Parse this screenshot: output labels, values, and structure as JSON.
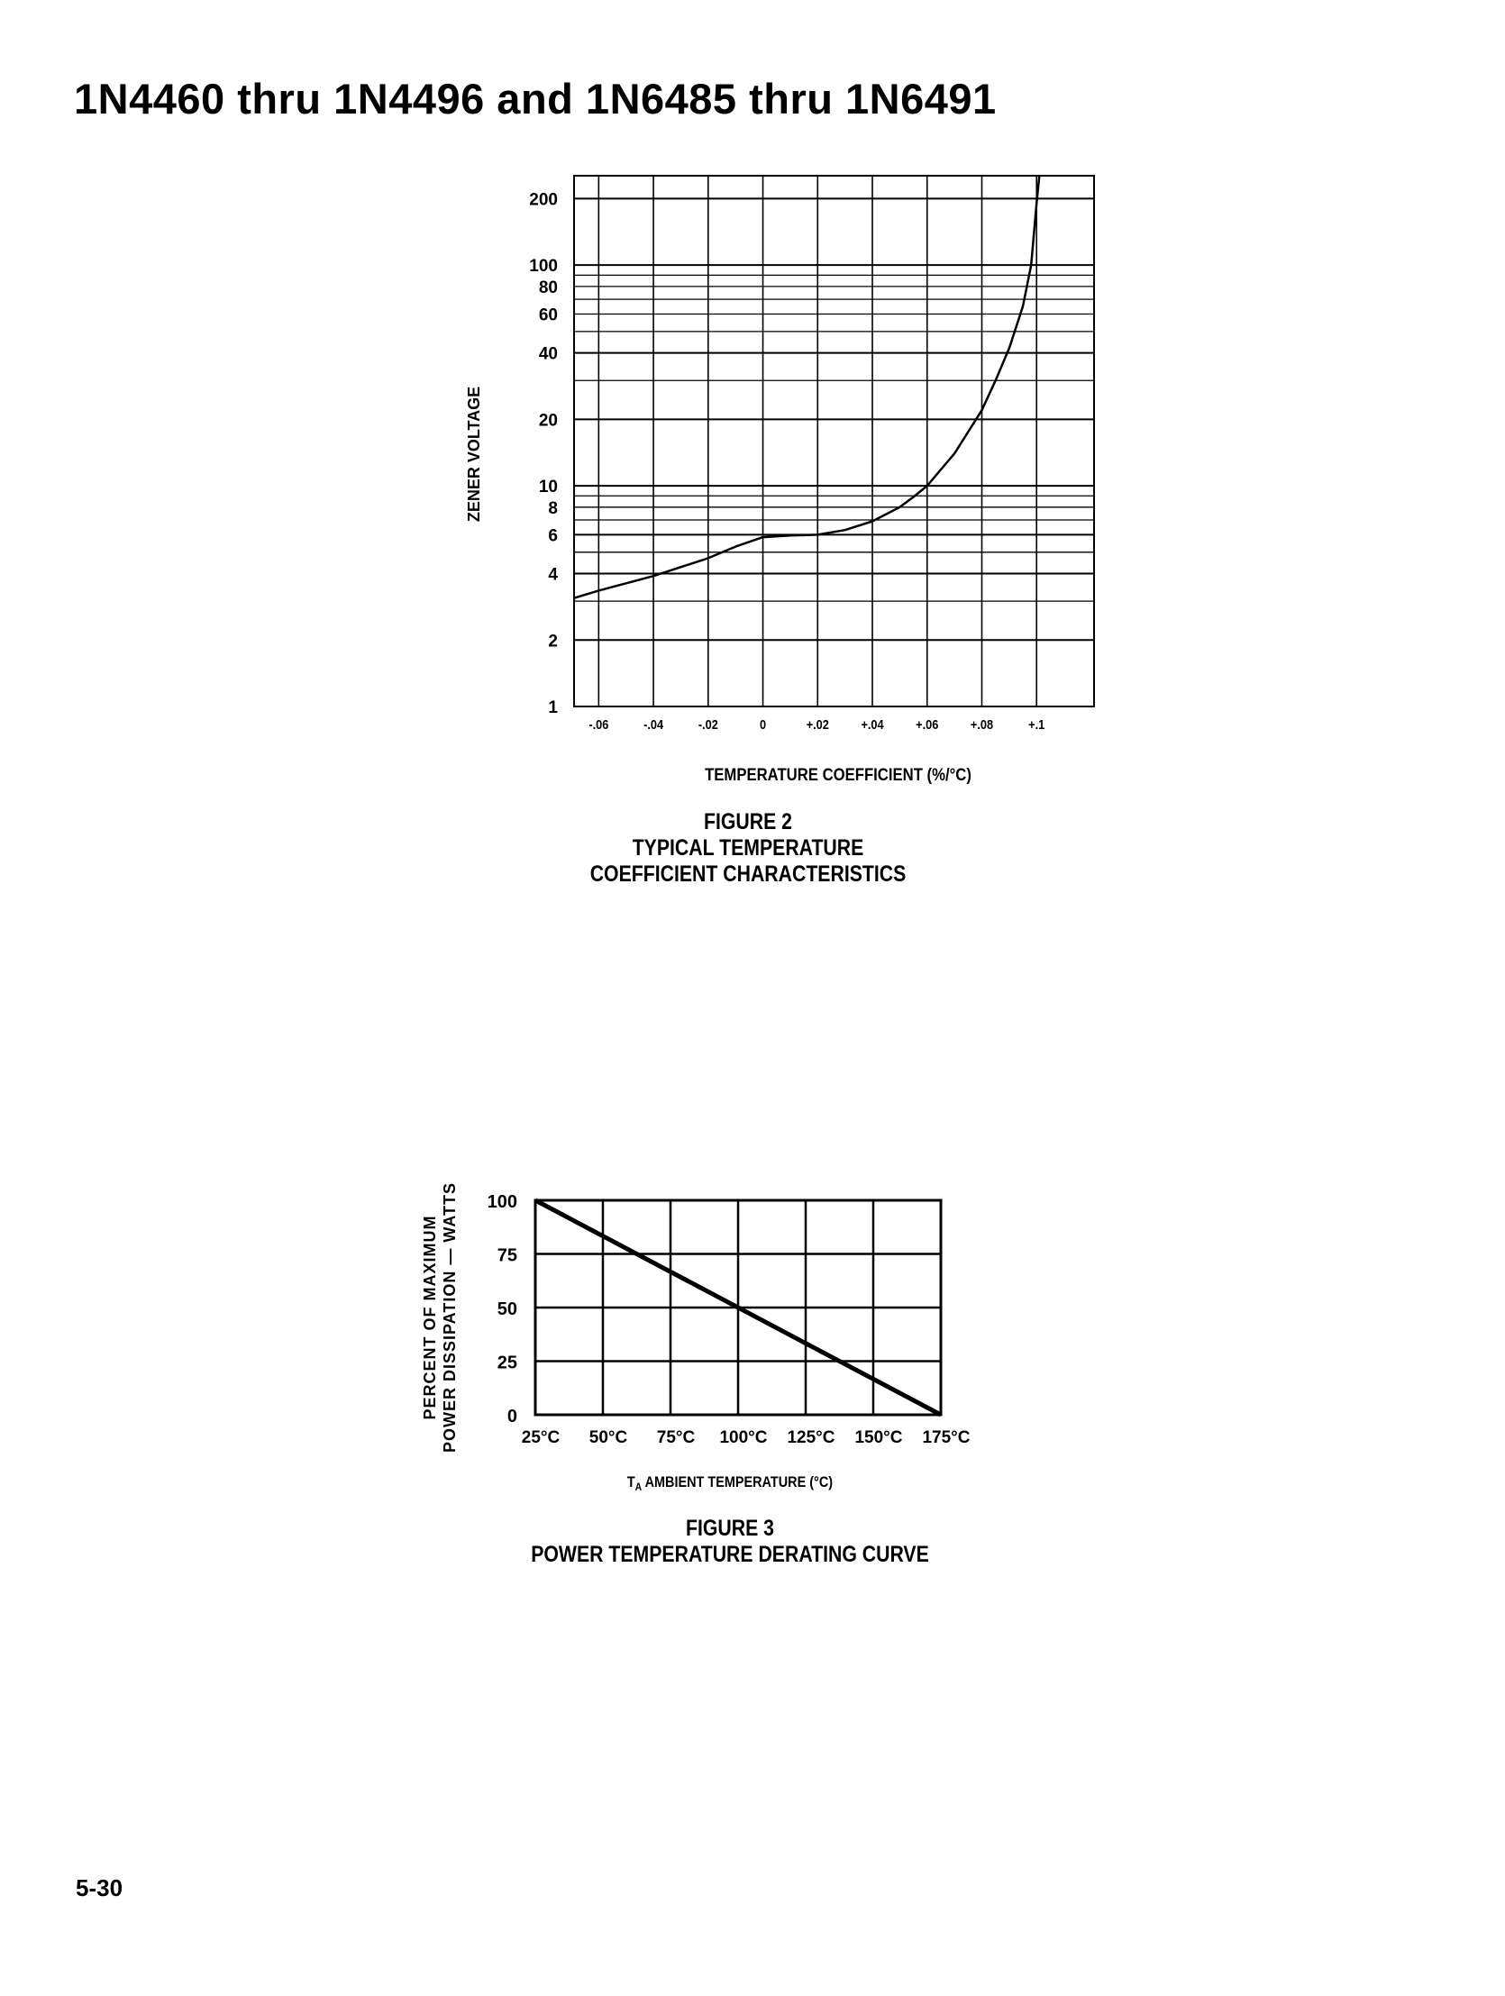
{
  "page": {
    "title": "1N4460 thru 1N4496 and 1N6485 thru 1N6491",
    "page_number": "5-30"
  },
  "chart_data": [
    {
      "type": "line",
      "figure_label": "FIGURE 2",
      "caption_lines": [
        "TYPICAL TEMPERATURE",
        "COEFFICIENT CHARACTERISTICS"
      ],
      "xlabel": "TEMPERATURE COEFFICIENT (%/°C)",
      "ylabel": "ZENER VOLTAGE",
      "xscale": "linear",
      "yscale": "log",
      "xlim": [
        -0.069,
        0.121
      ],
      "ylim": [
        1,
        254
      ],
      "grid": true,
      "x_ticks": [
        -0.06,
        -0.04,
        -0.02,
        0,
        0.02,
        0.04,
        0.06,
        0.08,
        0.1
      ],
      "x_tick_labels": [
        "-.06",
        "-.04",
        "-.02",
        "0",
        "+.02",
        "+.04",
        "+.06",
        "+.08",
        "+.1"
      ],
      "y_ticks": [
        1,
        2,
        4,
        6,
        8,
        10,
        20,
        40,
        60,
        80,
        100,
        200
      ],
      "y_tick_labels": [
        "1",
        "2",
        "4",
        "6",
        "8",
        "10",
        "20",
        "40",
        "60",
        "80",
        "100",
        "200"
      ],
      "y_gridlines": [
        2,
        3,
        4,
        5,
        6,
        7,
        8,
        9,
        10,
        20,
        30,
        40,
        50,
        60,
        70,
        80,
        90,
        100,
        200
      ],
      "series": [
        {
          "x": [
            -0.069,
            -0.06,
            -0.04,
            -0.02,
            -0.01,
            0,
            0.01,
            0.02,
            0.03,
            0.04,
            0.05,
            0.055,
            0.06,
            0.07,
            0.08,
            0.085,
            0.09,
            0.095,
            0.098,
            0.1,
            0.101
          ],
          "y": [
            3.1,
            3.35,
            3.9,
            4.7,
            5.3,
            5.85,
            5.95,
            6.0,
            6.3,
            6.9,
            8.0,
            8.9,
            10,
            14,
            22,
            30,
            42,
            65,
            100,
            190,
            254
          ]
        }
      ]
    },
    {
      "type": "line",
      "figure_label": "FIGURE 3",
      "caption_lines": [
        "POWER TEMPERATURE DERATING CURVE"
      ],
      "xlabel_sub": "A",
      "xlabel_prefix": "T",
      "xlabel": "AMBIENT TEMPERATURE (°C)",
      "ylabel_lines": [
        "PERCENT OF MAXIMUM",
        "POWER DISSIPATION — WATTS"
      ],
      "xlim": [
        25,
        175
      ],
      "ylim": [
        0,
        100
      ],
      "grid": true,
      "x_ticks": [
        25,
        50,
        75,
        100,
        125,
        150,
        175
      ],
      "x_tick_labels": [
        "25°C",
        "50°C",
        "75°C",
        "100°C",
        "125°C",
        "150°C",
        "175°C"
      ],
      "y_ticks": [
        0,
        25,
        50,
        75,
        100
      ],
      "y_tick_labels": [
        "0",
        "25",
        "50",
        "75",
        "100"
      ],
      "series": [
        {
          "x": [
            25,
            175
          ],
          "y": [
            100,
            0
          ]
        }
      ]
    }
  ]
}
